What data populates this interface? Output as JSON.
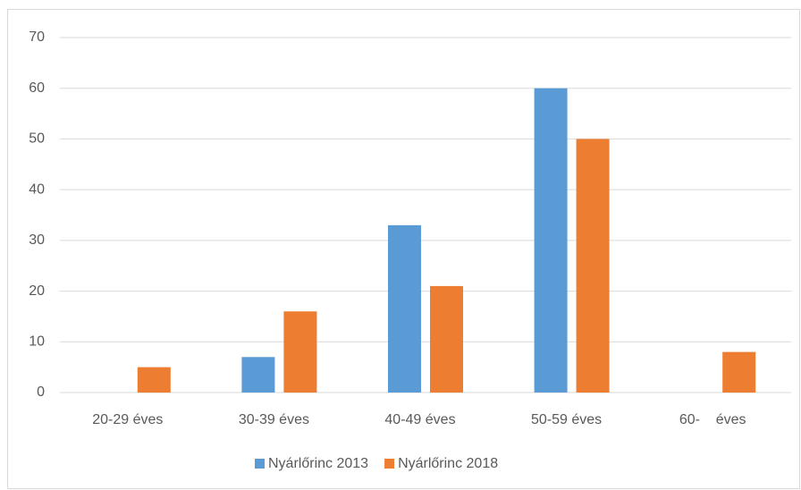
{
  "chart_data": {
    "type": "bar",
    "categories": [
      "20-29 éves",
      "30-39 éves",
      "40-49 éves",
      "50-59 éves",
      "60-    éves"
    ],
    "series": [
      {
        "name": "Nyárlőrinc 2013",
        "color": "#5b9bd5",
        "values": [
          0,
          7,
          33,
          60,
          0
        ]
      },
      {
        "name": "Nyárlőrinc 2018",
        "color": "#ed7d31",
        "values": [
          5,
          16,
          21,
          50,
          8
        ]
      }
    ],
    "ylim": [
      0,
      70
    ],
    "yticks": [
      0,
      10,
      20,
      30,
      40,
      50,
      60,
      70
    ],
    "grid": true,
    "legend": "bottom"
  }
}
